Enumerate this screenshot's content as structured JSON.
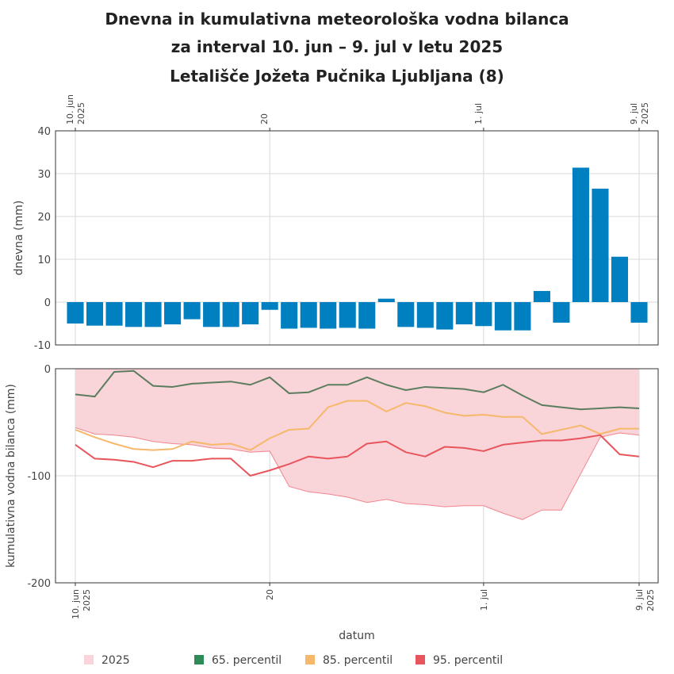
{
  "title": {
    "line1": "Dnevna in kumulativna meteorološka vodna bilanca",
    "line2": "za interval 10. jun – 9. jul v letu 2025",
    "line3": "Letališče Jožeta Pučnika Ljubljana (8)"
  },
  "colors": {
    "bars": "#0080c0",
    "band_fill": "#f9d4d8",
    "band_line": "#f1868f",
    "p65": "#5b7d5f",
    "p85": "#f6b86b",
    "p95": "#e8555c"
  },
  "chart_data": [
    {
      "type": "bar",
      "ylabel": "dnevna (mm)",
      "ylim": [
        -10,
        40
      ],
      "yticks": [
        "40",
        "30",
        "20",
        "10",
        "0",
        "-10"
      ],
      "ytick_values": [
        40,
        30,
        20,
        10,
        0,
        -10
      ],
      "x_start": "2025-06-10",
      "categories": [
        "2025-06-10",
        "2025-06-11",
        "2025-06-12",
        "2025-06-13",
        "2025-06-14",
        "2025-06-15",
        "2025-06-16",
        "2025-06-17",
        "2025-06-18",
        "2025-06-19",
        "2025-06-20",
        "2025-06-21",
        "2025-06-22",
        "2025-06-23",
        "2025-06-24",
        "2025-06-25",
        "2025-06-26",
        "2025-06-27",
        "2025-06-28",
        "2025-06-29",
        "2025-06-30",
        "2025-07-01",
        "2025-07-02",
        "2025-07-03",
        "2025-07-04",
        "2025-07-05",
        "2025-07-06",
        "2025-07-07",
        "2025-07-08",
        "2025-07-09"
      ],
      "values": [
        -5.0,
        -5.5,
        -5.5,
        -5.8,
        -5.8,
        -5.2,
        -4.0,
        -5.8,
        -5.8,
        -5.2,
        -1.8,
        -6.2,
        -6.0,
        -6.2,
        -6.0,
        -6.2,
        0.8,
        -5.8,
        -6.0,
        -6.4,
        -5.2,
        -5.6,
        -6.6,
        -6.6,
        2.6,
        -4.8,
        31.4,
        26.5,
        10.6,
        -4.8
      ],
      "grid": true
    },
    {
      "type": "area",
      "ylabel": "kumulativna vodna bilanca (mm)",
      "xlabel": "datum",
      "ylim": [
        -200,
        0
      ],
      "yticks": [
        "0",
        "-100",
        "-200"
      ],
      "ytick_values": [
        0,
        -100,
        -200
      ],
      "x": [
        "2025-06-10",
        "2025-06-11",
        "2025-06-12",
        "2025-06-13",
        "2025-06-14",
        "2025-06-15",
        "2025-06-16",
        "2025-06-17",
        "2025-06-18",
        "2025-06-19",
        "2025-06-20",
        "2025-06-21",
        "2025-06-22",
        "2025-06-23",
        "2025-06-24",
        "2025-06-25",
        "2025-06-26",
        "2025-06-27",
        "2025-06-28",
        "2025-06-29",
        "2025-06-30",
        "2025-07-01",
        "2025-07-02",
        "2025-07-03",
        "2025-07-04",
        "2025-07-05",
        "2025-07-06",
        "2025-07-07",
        "2025-07-08",
        "2025-07-09"
      ],
      "series": [
        {
          "name": "2025",
          "kind": "area",
          "values": [
            -55,
            -61,
            -62,
            -64,
            -68,
            -70,
            -71,
            -74,
            -75,
            -78,
            -77,
            -110,
            -115,
            -117,
            -120,
            -125,
            -122,
            -126,
            -127,
            -129,
            -128,
            -128,
            -135,
            -141,
            -132,
            -132,
            -98,
            -64,
            -60,
            -62
          ]
        },
        {
          "name": "65. percentil",
          "kind": "line",
          "values": [
            -24,
            -26,
            -3,
            -2,
            -16,
            -17,
            -14,
            -13,
            -12,
            -15,
            -8,
            -23,
            -22,
            -15,
            -15,
            -8,
            -15,
            -20,
            -17,
            -18,
            -19,
            -22,
            -15,
            -25,
            -34,
            -36,
            -38,
            -37,
            -36,
            -37
          ]
        },
        {
          "name": "85. percentil",
          "kind": "line",
          "values": [
            -57,
            -64,
            -70,
            -75,
            -76,
            -75,
            -68,
            -71,
            -70,
            -76,
            -65,
            -57,
            -56,
            -36,
            -30,
            -30,
            -40,
            -32,
            -35,
            -41,
            -44,
            -43,
            -45,
            -45,
            -61,
            -57,
            -53,
            -61,
            -56,
            -56
          ]
        },
        {
          "name": "95. percentil",
          "kind": "line",
          "values": [
            -71,
            -84,
            -85,
            -87,
            -92,
            -86,
            -86,
            -84,
            -84,
            -100,
            -95,
            -89,
            -82,
            -84,
            -82,
            -70,
            -68,
            -78,
            -82,
            -73,
            -74,
            -77,
            -71,
            -69,
            -67,
            -67,
            -65,
            -62,
            -80,
            -82
          ]
        }
      ],
      "grid": true
    }
  ],
  "xaxis": {
    "ticks": [
      {
        "date": "2025-06-10",
        "line1": "10. jun",
        "line2": "2025"
      },
      {
        "date": "2025-06-20",
        "line1": "20",
        "line2": ""
      },
      {
        "date": "2025-07-01",
        "line1": "1. jul",
        "line2": ""
      },
      {
        "date": "2025-07-09",
        "line1": "9. jul",
        "line2": "2025"
      }
    ]
  },
  "legend": {
    "items": [
      {
        "label": "2025",
        "color": "#f9d4d8"
      },
      {
        "label": "65. percentil",
        "color": "#2e8b57"
      },
      {
        "label": "85. percentil",
        "color": "#f6b86b"
      },
      {
        "label": "95. percentil",
        "color": "#e8555c"
      }
    ]
  }
}
